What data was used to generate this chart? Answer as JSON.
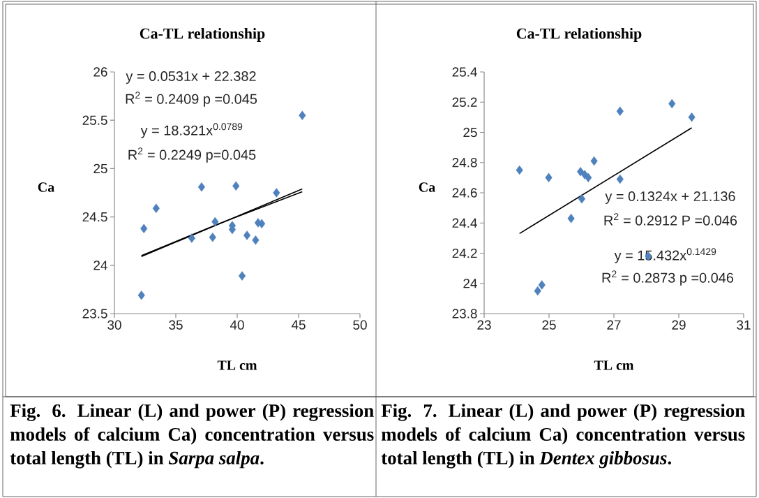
{
  "chart_data": [
    {
      "type": "scatter",
      "title": "Ca-TL relationship",
      "xlabel": "TL cm",
      "ylabel": "Ca",
      "xlim": [
        30,
        50
      ],
      "ylim": [
        23.5,
        26
      ],
      "xticks": [
        30,
        35,
        40,
        45,
        50
      ],
      "yticks": [
        23.5,
        24,
        24.5,
        25,
        25.5,
        26
      ],
      "marker": "diamond",
      "series": [
        {
          "color": "#4f81bd",
          "x": [
            32.2,
            32.4,
            33.4,
            36.3,
            37.1,
            38.0,
            38.2,
            39.6,
            39.6,
            39.9,
            40.4,
            40.8,
            41.5,
            41.7,
            42.0,
            43.2,
            45.3
          ],
          "values": [
            23.69,
            24.38,
            24.59,
            24.28,
            24.81,
            24.29,
            24.45,
            24.41,
            24.37,
            24.82,
            23.89,
            24.31,
            24.26,
            24.44,
            24.43,
            24.75,
            25.55
          ]
        },
        {
          "type": "line",
          "color": "#000000",
          "marker": "none",
          "x": [
            32.2,
            45.3
          ],
          "values": [
            24.09,
            24.79
          ]
        },
        {
          "type": "line",
          "color": "#000000",
          "marker": "none",
          "x": [
            32.2,
            38.7,
            45.3
          ],
          "values": [
            24.1,
            24.44,
            24.76
          ]
        }
      ],
      "annotations": [
        "y = 0.0531x + 22.382",
        "R$^{2}$ = 0.2409 p =0.045",
        "y = 18.321x$^{0.0789}$",
        "R$^{2}$ = 0.2249 p=0.045",
        "Fig. 6. Linear (L) and power (P) regression models of calcium Ca) concentration versus total length (TL) in *Sarpa salpa*."
      ]
    },
    {
      "type": "scatter",
      "title": "Ca-TL relationship",
      "xlabel": "TL cm",
      "ylabel": "Ca",
      "xlim": [
        23,
        31
      ],
      "ylim": [
        23.8,
        25.4
      ],
      "xticks": [
        23,
        25,
        27,
        29,
        31
      ],
      "yticks": [
        23.8,
        24,
        24.2,
        24.4,
        24.6,
        24.8,
        25,
        25.2,
        25.4
      ],
      "marker": "diamond",
      "series": [
        {
          "color": "#4f81bd",
          "x": [
            24.09,
            24.65,
            24.78,
            24.99,
            25.68,
            25.97,
            26.01,
            26.1,
            26.21,
            26.39,
            27.19,
            27.19,
            28.06,
            28.79,
            29.4
          ],
          "values": [
            24.75,
            23.95,
            23.99,
            24.7,
            24.43,
            24.74,
            24.56,
            24.72,
            24.7,
            24.81,
            25.14,
            24.69,
            24.18,
            25.19,
            25.1
          ]
        },
        {
          "type": "line",
          "color": "#000000",
          "marker": "none",
          "x": [
            24.09,
            29.4
          ],
          "values": [
            24.33,
            25.03
          ]
        }
      ],
      "annotations": [
        "y = 0.1324x + 21.136",
        "R$^{2}$ = 0.2912 P =0.046",
        "y = 15.432x$^{0.1429}$",
        "R$^{2}$ = 0.2873 p =0.046",
        "Fig. 7. Linear (L) and power (P) regression models of calcium Ca) concentration versus total length (TL) in *Dentex gibbosus*."
      ]
    }
  ]
}
